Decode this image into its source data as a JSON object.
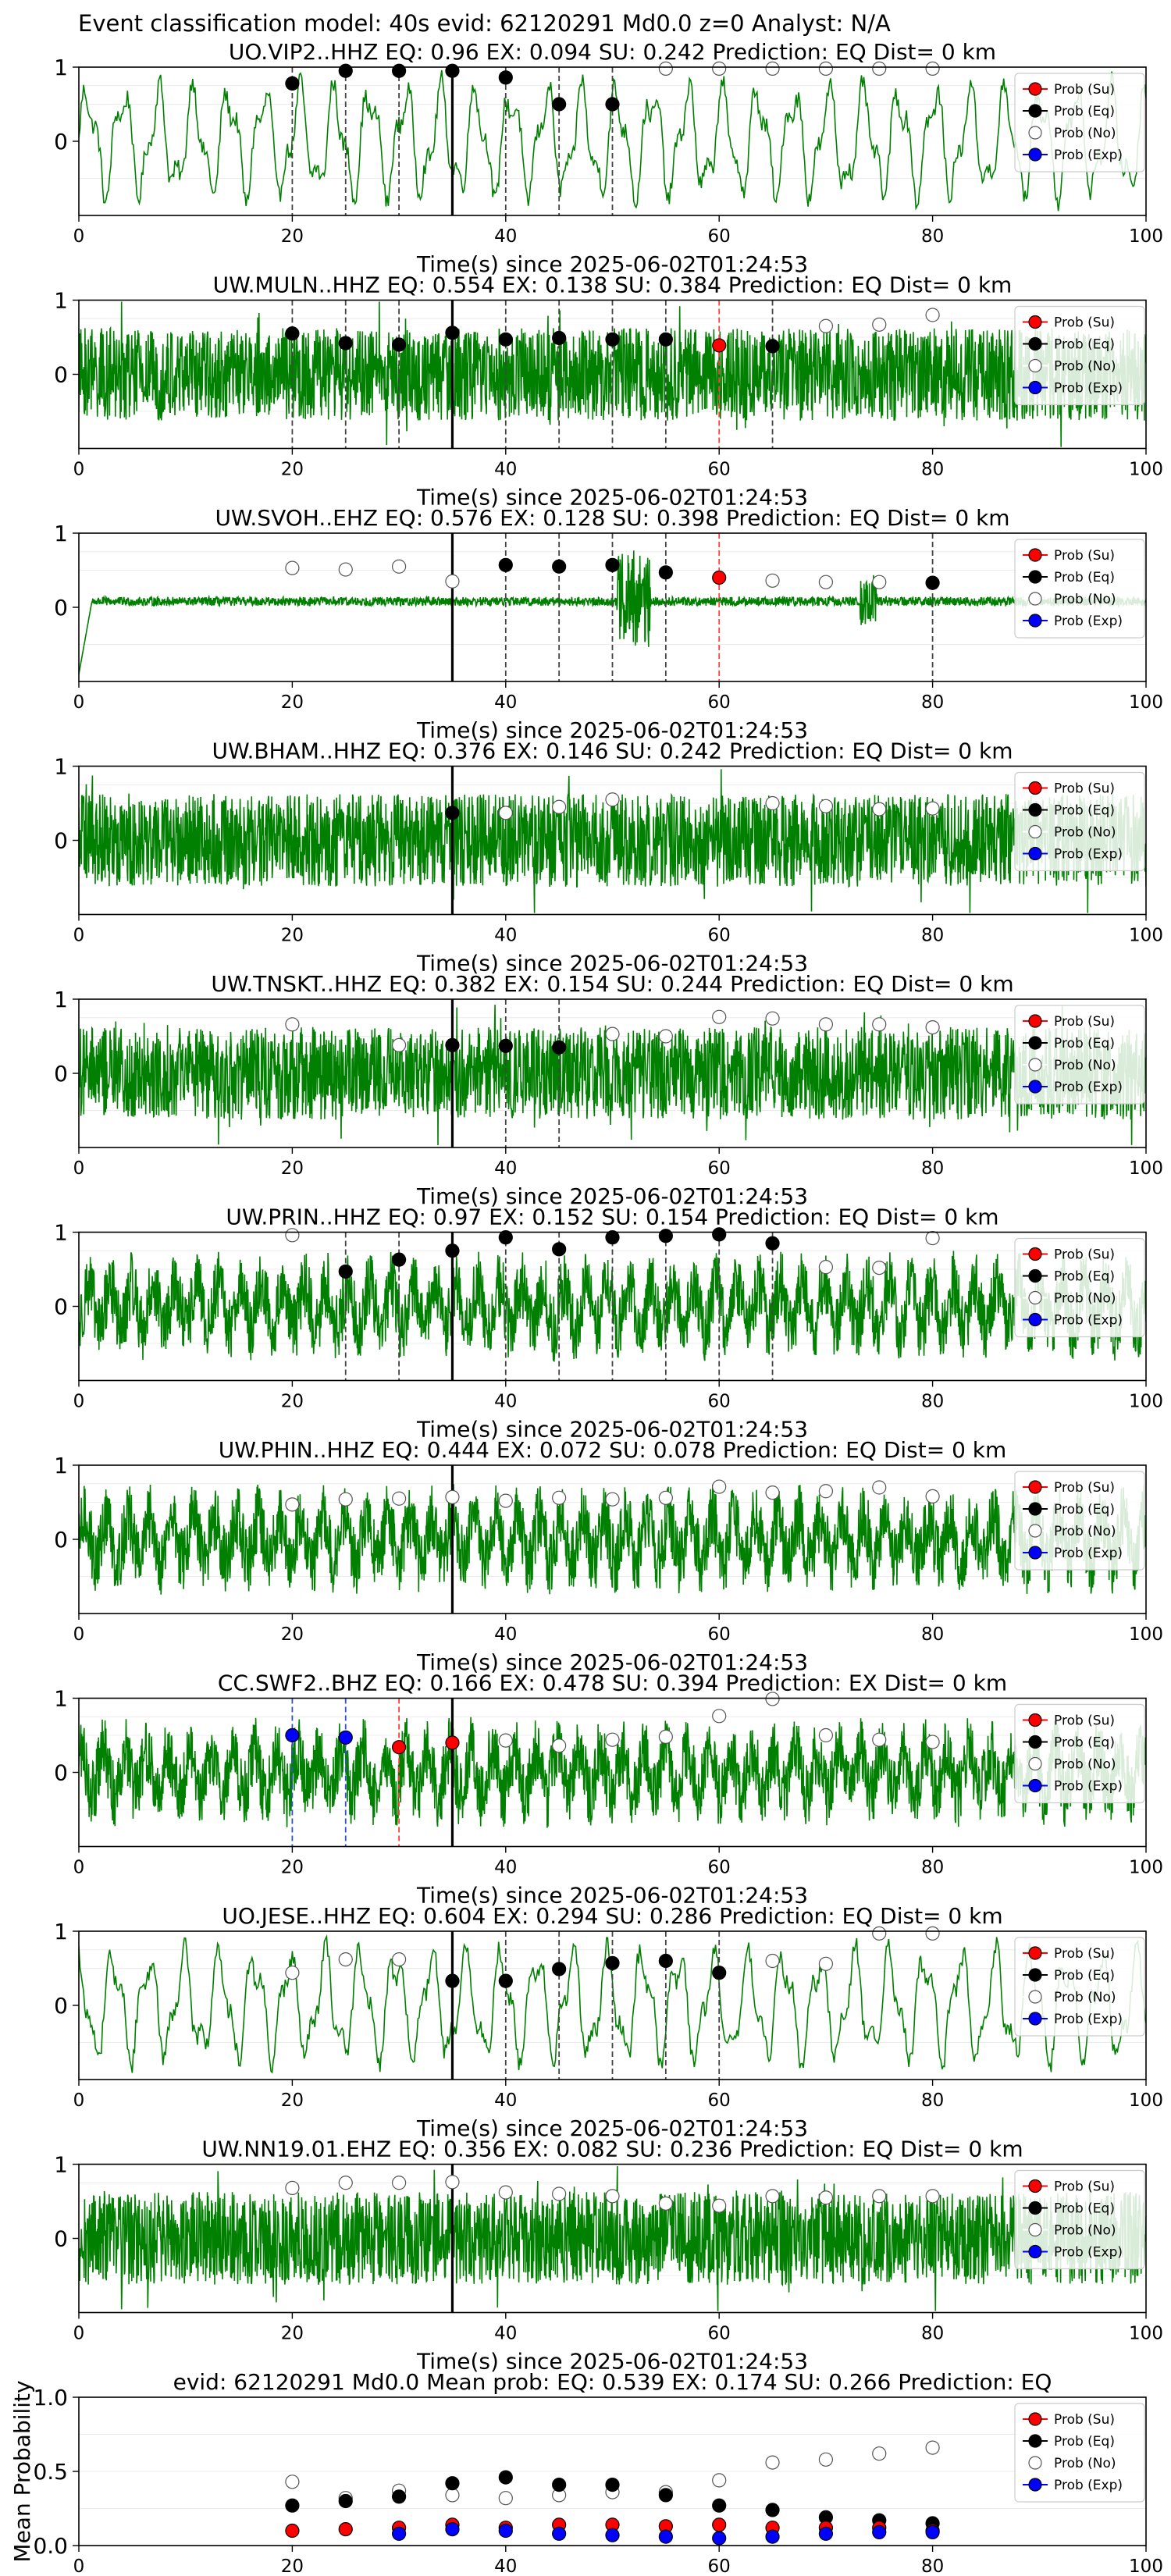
{
  "figure": {
    "suptitle": "Event classification model: 40s evid: 62120291 Md0.0 z=0 Analyst: N/A"
  },
  "colors": {
    "waveform": "#008000",
    "su": "#ff0000",
    "eq": "#000000",
    "no": "#ffffff",
    "exp": "#0000ff"
  },
  "legend": {
    "items": [
      {
        "label": "Prob (Su)",
        "key": "su"
      },
      {
        "label": "Prob (Eq)",
        "key": "eq"
      },
      {
        "label": "Prob (No)",
        "key": "no"
      },
      {
        "label": "Prob (Exp)",
        "key": "exp"
      }
    ]
  },
  "chart_data": [
    {
      "type": "line",
      "title": "UO.VIP2..HHZ   EQ: 0.96  EX: 0.094  SU: 0.242   Prediction: EQ    Dist= 0 km",
      "xlabel": "Time(s) since 2025-06-02T01:24:53",
      "xlim": [
        0,
        100
      ],
      "ylim": [
        -1,
        1
      ],
      "xticks": [
        0,
        20,
        40,
        60,
        80,
        100
      ],
      "yticks": [
        0,
        1
      ],
      "arrival": 35,
      "wave_style": "lowfreq",
      "eq": [
        [
          20,
          0.78
        ],
        [
          25,
          0.95
        ],
        [
          30,
          0.95
        ],
        [
          35,
          0.95
        ],
        [
          40,
          0.86
        ],
        [
          45,
          0.5
        ],
        [
          50,
          0.5
        ]
      ],
      "su": [],
      "exp": [],
      "no": [
        [
          55,
          0.98
        ],
        [
          60,
          0.98
        ],
        [
          65,
          0.98
        ],
        [
          70,
          0.98
        ],
        [
          75,
          0.98
        ],
        [
          80,
          0.98
        ]
      ],
      "vlines": [
        {
          "x": 20,
          "c": "eq"
        },
        {
          "x": 25,
          "c": "eq"
        },
        {
          "x": 30,
          "c": "eq"
        },
        {
          "x": 40,
          "c": "eq"
        },
        {
          "x": 45,
          "c": "eq"
        },
        {
          "x": 50,
          "c": "eq"
        }
      ]
    },
    {
      "type": "line",
      "title": "UW.MULN..HHZ   EQ: 0.554  EX: 0.138  SU: 0.384   Prediction: EQ    Dist= 0 km",
      "xlabel": "Time(s) since 2025-06-02T01:24:53",
      "xlim": [
        0,
        100
      ],
      "ylim": [
        -1,
        1
      ],
      "xticks": [
        0,
        20,
        40,
        60,
        80,
        100
      ],
      "yticks": [
        0,
        1
      ],
      "arrival": 35,
      "wave_style": "noise",
      "eq": [
        [
          20,
          0.55
        ],
        [
          25,
          0.42
        ],
        [
          30,
          0.4
        ],
        [
          35,
          0.56
        ],
        [
          40,
          0.47
        ],
        [
          45,
          0.49
        ],
        [
          50,
          0.47
        ],
        [
          55,
          0.47
        ],
        [
          65,
          0.38
        ]
      ],
      "su": [
        [
          60,
          0.39
        ]
      ],
      "exp": [],
      "no": [
        [
          70,
          0.65
        ],
        [
          75,
          0.67
        ],
        [
          80,
          0.8
        ]
      ],
      "vlines": [
        {
          "x": 20,
          "c": "eq"
        },
        {
          "x": 25,
          "c": "eq"
        },
        {
          "x": 30,
          "c": "eq"
        },
        {
          "x": 40,
          "c": "eq"
        },
        {
          "x": 45,
          "c": "eq"
        },
        {
          "x": 50,
          "c": "eq"
        },
        {
          "x": 55,
          "c": "eq"
        },
        {
          "x": 60,
          "c": "su"
        },
        {
          "x": 65,
          "c": "eq"
        }
      ]
    },
    {
      "type": "line",
      "title": "UW.SVOH..EHZ   EQ: 0.576  EX: 0.128  SU: 0.398   Prediction: EQ    Dist= 0 km",
      "xlabel": "Time(s) since 2025-06-02T01:24:53",
      "xlim": [
        0,
        100
      ],
      "ylim": [
        -1,
        1
      ],
      "xticks": [
        0,
        20,
        40,
        60,
        80,
        100
      ],
      "yticks": [
        0,
        1
      ],
      "arrival": 35,
      "wave_style": "quiet",
      "eq": [
        [
          40,
          0.57
        ],
        [
          45,
          0.55
        ],
        [
          50,
          0.57
        ],
        [
          55,
          0.47
        ],
        [
          80,
          0.33
        ]
      ],
      "su": [
        [
          60,
          0.4
        ]
      ],
      "exp": [],
      "no": [
        [
          20,
          0.53
        ],
        [
          25,
          0.51
        ],
        [
          30,
          0.55
        ],
        [
          35,
          0.35
        ],
        [
          65,
          0.36
        ],
        [
          70,
          0.34
        ],
        [
          75,
          0.34
        ]
      ],
      "vlines": [
        {
          "x": 40,
          "c": "eq"
        },
        {
          "x": 45,
          "c": "eq"
        },
        {
          "x": 50,
          "c": "eq"
        },
        {
          "x": 55,
          "c": "eq"
        },
        {
          "x": 60,
          "c": "su"
        },
        {
          "x": 80,
          "c": "eq"
        }
      ]
    },
    {
      "type": "line",
      "title": "UW.BHAM..HHZ   EQ: 0.376  EX: 0.146  SU: 0.242   Prediction: EQ    Dist= 0 km",
      "xlabel": "Time(s) since 2025-06-02T01:24:53",
      "xlim": [
        0,
        100
      ],
      "ylim": [
        -1,
        1
      ],
      "xticks": [
        0,
        20,
        40,
        60,
        80,
        100
      ],
      "yticks": [
        0,
        1
      ],
      "arrival": 35,
      "wave_style": "noise",
      "eq": [
        [
          35,
          0.37
        ]
      ],
      "su": [],
      "exp": [],
      "no": [
        [
          40,
          0.37
        ],
        [
          45,
          0.45
        ],
        [
          50,
          0.55
        ],
        [
          65,
          0.5
        ],
        [
          70,
          0.46
        ],
        [
          75,
          0.42
        ],
        [
          80,
          0.43
        ]
      ],
      "vlines": []
    },
    {
      "type": "line",
      "title": "UW.TNSKT..HHZ   EQ: 0.382  EX: 0.154  SU: 0.244   Prediction: EQ    Dist= 0 km",
      "xlabel": "Time(s) since 2025-06-02T01:24:53",
      "xlim": [
        0,
        100
      ],
      "ylim": [
        -1,
        1
      ],
      "xticks": [
        0,
        20,
        40,
        60,
        80,
        100
      ],
      "yticks": [
        0,
        1
      ],
      "arrival": 35,
      "wave_style": "noise",
      "eq": [
        [
          35,
          0.38
        ],
        [
          40,
          0.37
        ],
        [
          45,
          0.35
        ]
      ],
      "su": [],
      "exp": [],
      "no": [
        [
          20,
          0.66
        ],
        [
          30,
          0.38
        ],
        [
          50,
          0.53
        ],
        [
          55,
          0.5
        ],
        [
          60,
          0.76
        ],
        [
          65,
          0.74
        ],
        [
          70,
          0.66
        ],
        [
          75,
          0.66
        ],
        [
          80,
          0.62
        ]
      ],
      "vlines": [
        {
          "x": 40,
          "c": "eq"
        },
        {
          "x": 45,
          "c": "eq"
        }
      ]
    },
    {
      "type": "line",
      "title": "UW.PRIN..HHZ   EQ: 0.97  EX: 0.152  SU: 0.154   Prediction: EQ    Dist= 0 km",
      "xlabel": "Time(s) since 2025-06-02T01:24:53",
      "xlim": [
        0,
        100
      ],
      "ylim": [
        -1,
        1
      ],
      "xticks": [
        0,
        20,
        40,
        60,
        80,
        100
      ],
      "yticks": [
        0,
        1
      ],
      "arrival": 35,
      "wave_style": "mid",
      "eq": [
        [
          25,
          0.47
        ],
        [
          30,
          0.63
        ],
        [
          35,
          0.75
        ],
        [
          40,
          0.93
        ],
        [
          45,
          0.77
        ],
        [
          50,
          0.93
        ],
        [
          55,
          0.95
        ],
        [
          60,
          0.97
        ],
        [
          65,
          0.85
        ]
      ],
      "su": [],
      "exp": [],
      "no": [
        [
          20,
          0.96
        ],
        [
          70,
          0.53
        ],
        [
          75,
          0.52
        ],
        [
          80,
          0.92
        ]
      ],
      "vlines": [
        {
          "x": 25,
          "c": "eq"
        },
        {
          "x": 30,
          "c": "eq"
        },
        {
          "x": 40,
          "c": "eq"
        },
        {
          "x": 45,
          "c": "eq"
        },
        {
          "x": 50,
          "c": "eq"
        },
        {
          "x": 55,
          "c": "eq"
        },
        {
          "x": 60,
          "c": "eq"
        },
        {
          "x": 65,
          "c": "eq"
        }
      ]
    },
    {
      "type": "line",
      "title": "UW.PHIN..HHZ   EQ: 0.444  EX: 0.072  SU: 0.078   Prediction: EQ    Dist= 0 km",
      "xlabel": "Time(s) since 2025-06-02T01:24:53",
      "xlim": [
        0,
        100
      ],
      "ylim": [
        -1,
        1
      ],
      "xticks": [
        0,
        20,
        40,
        60,
        80,
        100
      ],
      "yticks": [
        0,
        1
      ],
      "arrival": 35,
      "wave_style": "mid",
      "eq": [],
      "su": [],
      "exp": [],
      "no": [
        [
          20,
          0.47
        ],
        [
          25,
          0.54
        ],
        [
          30,
          0.55
        ],
        [
          35,
          0.57
        ],
        [
          40,
          0.52
        ],
        [
          45,
          0.56
        ],
        [
          50,
          0.54
        ],
        [
          55,
          0.56
        ],
        [
          60,
          0.71
        ],
        [
          65,
          0.63
        ],
        [
          70,
          0.65
        ],
        [
          75,
          0.7
        ],
        [
          80,
          0.58
        ]
      ],
      "vlines": []
    },
    {
      "type": "line",
      "title": "CC.SWF2..BHZ   EQ: 0.166  EX: 0.478  SU: 0.394   Prediction: EX    Dist= 0 km",
      "xlabel": "Time(s) since 2025-06-02T01:24:53",
      "xlim": [
        0,
        100
      ],
      "ylim": [
        -1,
        1
      ],
      "xticks": [
        0,
        20,
        40,
        60,
        80,
        100
      ],
      "yticks": [
        0,
        1
      ],
      "arrival": 35,
      "wave_style": "mid",
      "eq": [],
      "su": [
        [
          30,
          0.34
        ],
        [
          35,
          0.4
        ]
      ],
      "exp": [
        [
          20,
          0.5
        ],
        [
          25,
          0.47
        ]
      ],
      "no": [
        [
          40,
          0.43
        ],
        [
          45,
          0.36
        ],
        [
          50,
          0.44
        ],
        [
          55,
          0.48
        ],
        [
          60,
          0.76
        ],
        [
          65,
          0.99
        ],
        [
          70,
          0.5
        ],
        [
          75,
          0.44
        ],
        [
          80,
          0.41
        ]
      ],
      "vlines": [
        {
          "x": 20,
          "c": "exp"
        },
        {
          "x": 25,
          "c": "exp"
        },
        {
          "x": 30,
          "c": "su"
        }
      ]
    },
    {
      "type": "line",
      "title": "UO.JESE..HHZ   EQ: 0.604  EX: 0.294  SU: 0.286   Prediction: EQ    Dist= 0 km",
      "xlabel": "Time(s) since 2025-06-02T01:24:53",
      "xlim": [
        0,
        100
      ],
      "ylim": [
        -1,
        1
      ],
      "xticks": [
        0,
        20,
        40,
        60,
        80,
        100
      ],
      "yticks": [
        0,
        1
      ],
      "arrival": 35,
      "wave_style": "lowfreq",
      "eq": [
        [
          35,
          0.33
        ],
        [
          40,
          0.33
        ],
        [
          45,
          0.49
        ],
        [
          50,
          0.57
        ],
        [
          55,
          0.6
        ],
        [
          60,
          0.44
        ]
      ],
      "su": [],
      "exp": [],
      "no": [
        [
          20,
          0.44
        ],
        [
          25,
          0.62
        ],
        [
          30,
          0.62
        ],
        [
          65,
          0.6
        ],
        [
          70,
          0.56
        ],
        [
          75,
          0.97
        ],
        [
          80,
          0.97
        ]
      ],
      "vlines": [
        {
          "x": 40,
          "c": "eq"
        },
        {
          "x": 45,
          "c": "eq"
        },
        {
          "x": 50,
          "c": "eq"
        },
        {
          "x": 55,
          "c": "eq"
        },
        {
          "x": 60,
          "c": "eq"
        }
      ]
    },
    {
      "type": "line",
      "title": "UW.NN19.01.EHZ   EQ: 0.356  EX: 0.082  SU: 0.236   Prediction: EQ    Dist= 0 km",
      "xlabel": "Time(s) since 2025-06-02T01:24:53",
      "xlim": [
        0,
        100
      ],
      "ylim": [
        -1,
        1
      ],
      "xticks": [
        0,
        20,
        40,
        60,
        80,
        100
      ],
      "yticks": [
        0,
        1
      ],
      "arrival": 35,
      "wave_style": "noise",
      "eq": [],
      "su": [],
      "exp": [],
      "no": [
        [
          20,
          0.68
        ],
        [
          25,
          0.75
        ],
        [
          30,
          0.75
        ],
        [
          35,
          0.76
        ],
        [
          40,
          0.62
        ],
        [
          45,
          0.6
        ],
        [
          50,
          0.57
        ],
        [
          55,
          0.47
        ],
        [
          60,
          0.44
        ],
        [
          65,
          0.57
        ],
        [
          70,
          0.55
        ],
        [
          75,
          0.57
        ],
        [
          80,
          0.57
        ]
      ],
      "vlines": []
    },
    {
      "type": "scatter",
      "title": "evid: 62120291  Md0.0   Mean prob:   EQ: 0.539  EX: 0.174  SU: 0.266   Prediction: EQ",
      "ylabel": "Mean Probability",
      "xlim": [
        0,
        100
      ],
      "ylim": [
        0,
        1
      ],
      "xticks": [
        0,
        20,
        40,
        60,
        80,
        100
      ],
      "yticks": [
        0.0,
        0.5,
        1.0
      ],
      "ytick_labels": [
        "0.0",
        "0.5",
        "1.0"
      ],
      "eq": [
        [
          20,
          0.27
        ],
        [
          25,
          0.3
        ],
        [
          30,
          0.33
        ],
        [
          35,
          0.42
        ],
        [
          40,
          0.46
        ],
        [
          45,
          0.41
        ],
        [
          50,
          0.41
        ],
        [
          55,
          0.34
        ],
        [
          60,
          0.27
        ],
        [
          65,
          0.24
        ],
        [
          70,
          0.19
        ],
        [
          75,
          0.17
        ],
        [
          80,
          0.15
        ]
      ],
      "su": [
        [
          20,
          0.1
        ],
        [
          25,
          0.11
        ],
        [
          30,
          0.12
        ],
        [
          35,
          0.14
        ],
        [
          40,
          0.12
        ],
        [
          45,
          0.14
        ],
        [
          50,
          0.14
        ],
        [
          55,
          0.13
        ],
        [
          60,
          0.14
        ],
        [
          65,
          0.12
        ],
        [
          70,
          0.12
        ],
        [
          75,
          0.12
        ],
        [
          80,
          0.1
        ]
      ],
      "exp": [
        [
          30,
          0.08
        ],
        [
          35,
          0.11
        ],
        [
          40,
          0.1
        ],
        [
          45,
          0.08
        ],
        [
          50,
          0.07
        ],
        [
          55,
          0.06
        ],
        [
          60,
          0.05
        ],
        [
          65,
          0.06
        ],
        [
          70,
          0.08
        ],
        [
          75,
          0.09
        ],
        [
          80,
          0.09
        ]
      ],
      "no": [
        [
          20,
          0.43
        ],
        [
          25,
          0.32
        ],
        [
          30,
          0.37
        ],
        [
          35,
          0.34
        ],
        [
          40,
          0.32
        ],
        [
          45,
          0.34
        ],
        [
          50,
          0.36
        ],
        [
          55,
          0.36
        ],
        [
          60,
          0.44
        ],
        [
          65,
          0.56
        ],
        [
          70,
          0.58
        ],
        [
          75,
          0.62
        ],
        [
          80,
          0.66
        ]
      ],
      "vlines": []
    }
  ]
}
